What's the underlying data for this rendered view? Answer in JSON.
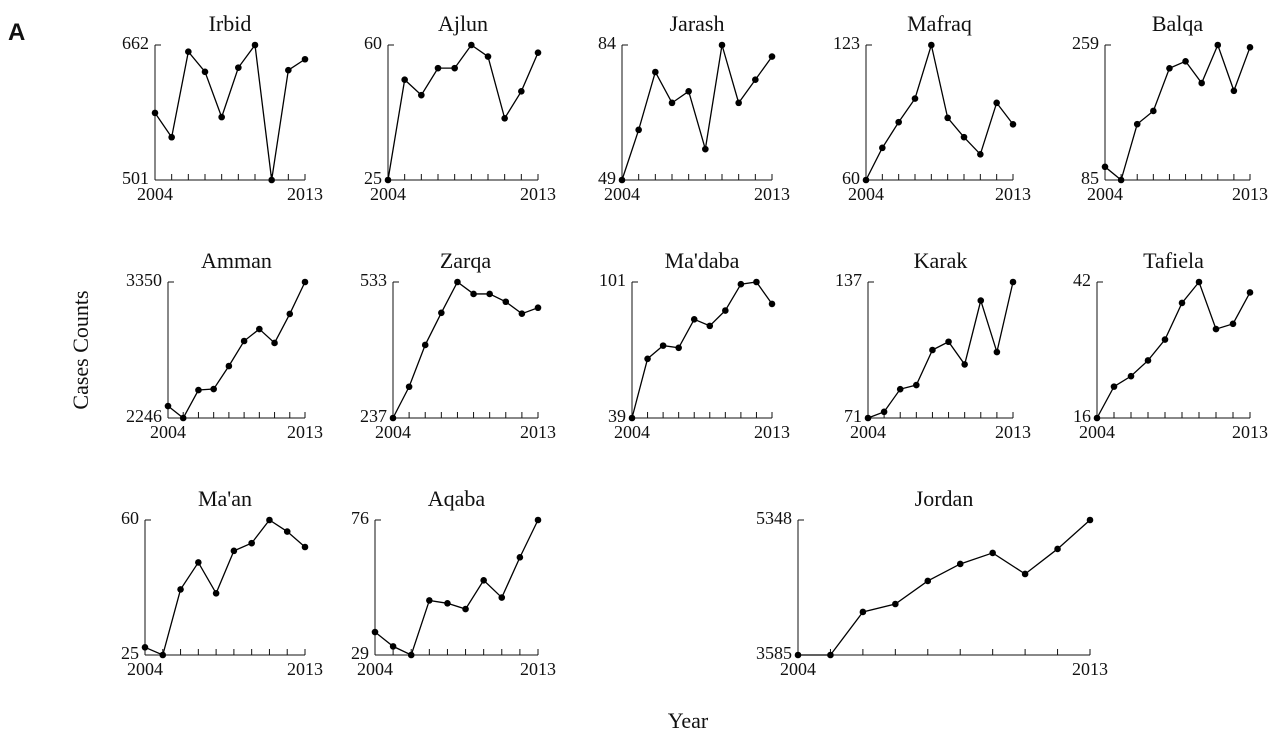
{
  "panel_label": "A",
  "y_label": "Cases Counts",
  "x_label": "Year",
  "chart_data": [
    {
      "type": "line",
      "title": "Irbid",
      "x": [
        2004,
        2005,
        2006,
        2007,
        2008,
        2009,
        2010,
        2011,
        2012,
        2013
      ],
      "values": [
        581,
        552,
        654,
        630,
        576,
        635,
        662,
        501,
        632,
        645
      ],
      "xlim": [
        2004,
        2013
      ],
      "xticks": [
        2004,
        2013
      ],
      "ylim": [
        501,
        662
      ],
      "yticks": [
        501,
        662
      ],
      "color": "#000000"
    },
    {
      "type": "line",
      "title": "Ajlun",
      "x": [
        2004,
        2005,
        2006,
        2007,
        2008,
        2009,
        2010,
        2011,
        2012,
        2013
      ],
      "values": [
        25,
        51,
        47,
        54,
        54,
        60,
        57,
        41,
        48,
        58
      ],
      "xlim": [
        2004,
        2013
      ],
      "xticks": [
        2004,
        2013
      ],
      "ylim": [
        25,
        60
      ],
      "yticks": [
        25,
        60
      ],
      "color": "#000000"
    },
    {
      "type": "line",
      "title": "Jarash",
      "x": [
        2004,
        2005,
        2006,
        2007,
        2008,
        2009,
        2010,
        2011,
        2012,
        2013
      ],
      "values": [
        49,
        62,
        77,
        69,
        72,
        57,
        84,
        69,
        75,
        81
      ],
      "xlim": [
        2004,
        2013
      ],
      "xticks": [
        2004,
        2013
      ],
      "ylim": [
        49,
        84
      ],
      "yticks": [
        49,
        84
      ],
      "color": "#000000"
    },
    {
      "type": "line",
      "title": "Mafraq",
      "x": [
        2004,
        2005,
        2006,
        2007,
        2008,
        2009,
        2010,
        2011,
        2012,
        2013
      ],
      "values": [
        60,
        75,
        87,
        98,
        123,
        89,
        80,
        72,
        96,
        86
      ],
      "xlim": [
        2004,
        2013
      ],
      "xticks": [
        2004,
        2013
      ],
      "ylim": [
        60,
        123
      ],
      "yticks": [
        60,
        123
      ],
      "color": "#000000"
    },
    {
      "type": "line",
      "title": "Balqa",
      "x": [
        2004,
        2005,
        2006,
        2007,
        2008,
        2009,
        2010,
        2011,
        2012,
        2013
      ],
      "values": [
        102,
        85,
        157,
        174,
        229,
        238,
        210,
        259,
        200,
        256
      ],
      "xlim": [
        2004,
        2013
      ],
      "xticks": [
        2004,
        2013
      ],
      "ylim": [
        85,
        259
      ],
      "yticks": [
        85,
        259
      ],
      "color": "#000000"
    },
    {
      "type": "line",
      "title": "Amman",
      "x": [
        2004,
        2005,
        2006,
        2007,
        2008,
        2009,
        2010,
        2011,
        2012,
        2013
      ],
      "values": [
        2343,
        2246,
        2473,
        2481,
        2668,
        2871,
        2968,
        2855,
        3091,
        3350
      ],
      "xlim": [
        2004,
        2013
      ],
      "xticks": [
        2004,
        2013
      ],
      "ylim": [
        2246,
        3350
      ],
      "yticks": [
        2246,
        3350
      ],
      "color": "#000000"
    },
    {
      "type": "line",
      "title": "Zarqa",
      "x": [
        2004,
        2005,
        2006,
        2007,
        2008,
        2009,
        2010,
        2011,
        2012,
        2013
      ],
      "values": [
        237,
        305,
        396,
        466,
        533,
        507,
        507,
        490,
        464,
        477
      ],
      "xlim": [
        2004,
        2013
      ],
      "xticks": [
        2004,
        2013
      ],
      "ylim": [
        237,
        533
      ],
      "yticks": [
        237,
        533
      ],
      "color": "#000000"
    },
    {
      "type": "line",
      "title": "Ma'daba",
      "x": [
        2004,
        2005,
        2006,
        2007,
        2008,
        2009,
        2010,
        2011,
        2012,
        2013
      ],
      "values": [
        39,
        66,
        72,
        71,
        84,
        81,
        88,
        100,
        101,
        91
      ],
      "xlim": [
        2004,
        2013
      ],
      "xticks": [
        2004,
        2013
      ],
      "ylim": [
        39,
        101
      ],
      "yticks": [
        39,
        101
      ],
      "color": "#000000"
    },
    {
      "type": "line",
      "title": "Karak",
      "x": [
        2004,
        2005,
        2006,
        2007,
        2008,
        2009,
        2010,
        2011,
        2012,
        2013
      ],
      "values": [
        71,
        74,
        85,
        87,
        104,
        108,
        97,
        128,
        103,
        137
      ],
      "xlim": [
        2004,
        2013
      ],
      "xticks": [
        2004,
        2013
      ],
      "ylim": [
        71,
        137
      ],
      "yticks": [
        71,
        137
      ],
      "color": "#000000"
    },
    {
      "type": "line",
      "title": "Tafiela",
      "x": [
        2004,
        2005,
        2006,
        2007,
        2008,
        2009,
        2010,
        2011,
        2012,
        2013
      ],
      "values": [
        16,
        22,
        24,
        27,
        31,
        38,
        42,
        33,
        34,
        40
      ],
      "xlim": [
        2004,
        2013
      ],
      "xticks": [
        2004,
        2013
      ],
      "ylim": [
        16,
        42
      ],
      "yticks": [
        16,
        42
      ],
      "color": "#000000"
    },
    {
      "type": "line",
      "title": "Ma'an",
      "x": [
        2004,
        2005,
        2006,
        2007,
        2008,
        2009,
        2010,
        2011,
        2012,
        2013
      ],
      "values": [
        27,
        25,
        42,
        49,
        41,
        52,
        54,
        60,
        57,
        53
      ],
      "xlim": [
        2004,
        2013
      ],
      "xticks": [
        2004,
        2013
      ],
      "ylim": [
        25,
        60
      ],
      "yticks": [
        25,
        60
      ],
      "color": "#000000"
    },
    {
      "type": "line",
      "title": "Aqaba",
      "x": [
        2004,
        2005,
        2006,
        2007,
        2008,
        2009,
        2010,
        2011,
        2012,
        2013
      ],
      "values": [
        37,
        32,
        29,
        48,
        47,
        45,
        55,
        49,
        63,
        76
      ],
      "xlim": [
        2004,
        2013
      ],
      "xticks": [
        2004,
        2013
      ],
      "ylim": [
        29,
        76
      ],
      "yticks": [
        29,
        76
      ],
      "color": "#000000"
    },
    {
      "type": "line",
      "title": "Jordan",
      "x": [
        2004,
        2005,
        2006,
        2007,
        2008,
        2009,
        2010,
        2011,
        2012,
        2013
      ],
      "values": [
        3585,
        3585,
        4147,
        4251,
        4552,
        4774,
        4918,
        4643,
        4970,
        5348
      ],
      "xlim": [
        2004,
        2013
      ],
      "xticks": [
        2004,
        2013
      ],
      "ylim": [
        3585,
        5348
      ],
      "yticks": [
        3585,
        5348
      ],
      "color": "#000000"
    }
  ]
}
